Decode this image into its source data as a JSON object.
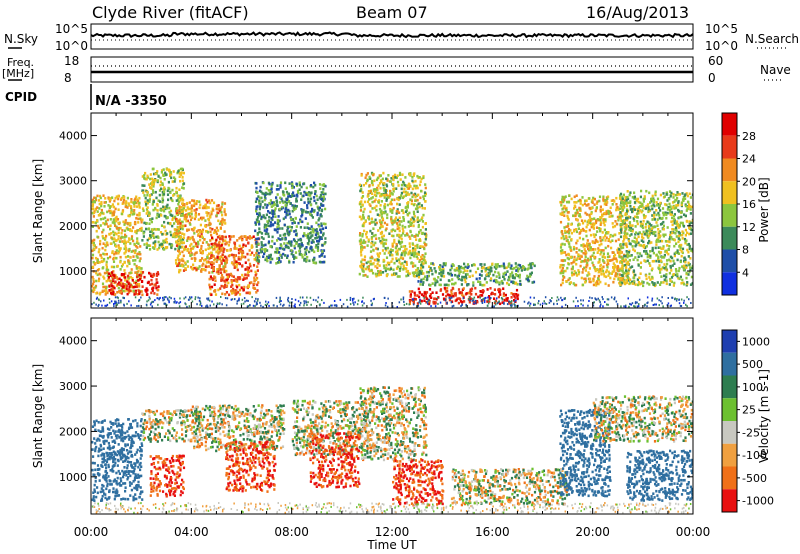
{
  "header": {
    "station": "Clyde River (fitACF)",
    "beam": "Beam 07",
    "date": "16/Aug/2013"
  },
  "nsky": {
    "left_label": "N.Sky",
    "left_top": "10^5",
    "left_bottom": "10^0",
    "right_label": "N.Search",
    "right_top": "10^5",
    "right_bottom": "10^0"
  },
  "freq": {
    "left_label_1": "Freq.",
    "left_label_2": "[MHz]",
    "left_top": "18",
    "left_bottom": "8",
    "right_label": "Nave",
    "right_top": "60",
    "right_bottom": "0"
  },
  "cpid": {
    "label": "CPID",
    "value": "N/A -3350"
  },
  "x_ticks": [
    "00:00",
    "04:00",
    "08:00",
    "12:00",
    "16:00",
    "20:00",
    "00:00"
  ],
  "x_label": "Time UT",
  "y_ticks": [
    "1000",
    "2000",
    "3000",
    "4000"
  ],
  "power_colorbar": {
    "title": "Power [dB]",
    "ticks": [
      "4",
      "8",
      "12",
      "16",
      "20",
      "24",
      "28"
    ],
    "colors": [
      "#1030e0",
      "#1f4fa8",
      "#3c8a5a",
      "#8cc63e",
      "#f0c020",
      "#f08a20",
      "#e83a1a",
      "#e00000"
    ]
  },
  "velocity_colorbar": {
    "title": "Velocity [m s-1]",
    "ticks": [
      "1000",
      "500",
      "100",
      "25",
      "-25",
      "-100",
      "-500",
      "-1000"
    ],
    "colors": [
      "#1f3fb0",
      "#2f6fa0",
      "#2e7d50",
      "#6cc030",
      "#c8c8c0",
      "#f0a040",
      "#f07018",
      "#e81010"
    ]
  },
  "chart_data": [
    {
      "type": "heatmap",
      "title": "",
      "xlabel": "Time UT",
      "ylabel": "Slant Range [km]",
      "colorbar_label": "Power [dB]",
      "x_range": [
        "00:00",
        "24:00"
      ],
      "ylim": [
        180,
        4500
      ],
      "z_range": [
        0,
        30
      ],
      "regions": [
        {
          "x_start": "00:00",
          "x_end": "02:00",
          "y_min": 500,
          "y_max": 2700,
          "power_db": 18
        },
        {
          "x_start": "00:40",
          "x_end": "02:40",
          "y_min": 500,
          "y_max": 1000,
          "power_db": 28
        },
        {
          "x_start": "02:00",
          "x_end": "03:40",
          "y_min": 1500,
          "y_max": 3300,
          "power_db": 14
        },
        {
          "x_start": "03:20",
          "x_end": "05:20",
          "y_min": 1000,
          "y_max": 2600,
          "power_db": 20
        },
        {
          "x_start": "04:40",
          "x_end": "06:40",
          "y_min": 500,
          "y_max": 1800,
          "power_db": 24
        },
        {
          "x_start": "06:30",
          "x_end": "09:20",
          "y_min": 1200,
          "y_max": 3000,
          "power_db": 10
        },
        {
          "x_start": "10:40",
          "x_end": "13:20",
          "y_min": 900,
          "y_max": 3200,
          "power_db": 16
        },
        {
          "x_start": "12:40",
          "x_end": "17:00",
          "y_min": 300,
          "y_max": 650,
          "power_db": 28
        },
        {
          "x_start": "13:00",
          "x_end": "17:40",
          "y_min": 700,
          "y_max": 1200,
          "power_db": 12
        },
        {
          "x_start": "18:40",
          "x_end": "21:20",
          "y_min": 700,
          "y_max": 2700,
          "power_db": 18
        },
        {
          "x_start": "21:00",
          "x_end": "24:00",
          "y_min": 700,
          "y_max": 2800,
          "power_db": 14
        }
      ]
    },
    {
      "type": "heatmap",
      "title": "",
      "xlabel": "Time UT",
      "ylabel": "Slant Range [km]",
      "colorbar_label": "Velocity [m s-1]",
      "x_range": [
        "00:00",
        "24:00"
      ],
      "ylim": [
        180,
        4500
      ],
      "z_range": [
        -1000,
        1000
      ],
      "regions": [
        {
          "x_start": "00:00",
          "x_end": "02:00",
          "y_min": 500,
          "y_max": 2300,
          "velocity_ms": 500
        },
        {
          "x_start": "02:00",
          "x_end": "04:20",
          "y_min": 1800,
          "y_max": 2500,
          "velocity_ms": 0
        },
        {
          "x_start": "02:20",
          "x_end": "03:40",
          "y_min": 600,
          "y_max": 1500,
          "velocity_ms": -500
        },
        {
          "x_start": "04:00",
          "x_end": "07:40",
          "y_min": 1600,
          "y_max": 2600,
          "velocity_ms": 0
        },
        {
          "x_start": "05:20",
          "x_end": "07:20",
          "y_min": 700,
          "y_max": 1800,
          "velocity_ms": -500
        },
        {
          "x_start": "08:00",
          "x_end": "11:00",
          "y_min": 1500,
          "y_max": 2700,
          "velocity_ms": 0
        },
        {
          "x_start": "08:40",
          "x_end": "10:40",
          "y_min": 800,
          "y_max": 2000,
          "velocity_ms": -500
        },
        {
          "x_start": "10:40",
          "x_end": "13:20",
          "y_min": 1400,
          "y_max": 3000,
          "velocity_ms": 0
        },
        {
          "x_start": "12:00",
          "x_end": "14:00",
          "y_min": 400,
          "y_max": 1400,
          "velocity_ms": -500
        },
        {
          "x_start": "14:20",
          "x_end": "19:00",
          "y_min": 400,
          "y_max": 1200,
          "velocity_ms": 0
        },
        {
          "x_start": "18:40",
          "x_end": "20:40",
          "y_min": 600,
          "y_max": 2500,
          "velocity_ms": 500
        },
        {
          "x_start": "20:00",
          "x_end": "24:00",
          "y_min": 1800,
          "y_max": 2800,
          "velocity_ms": 0
        },
        {
          "x_start": "21:20",
          "x_end": "24:00",
          "y_min": 500,
          "y_max": 1600,
          "velocity_ms": 500
        }
      ]
    }
  ]
}
